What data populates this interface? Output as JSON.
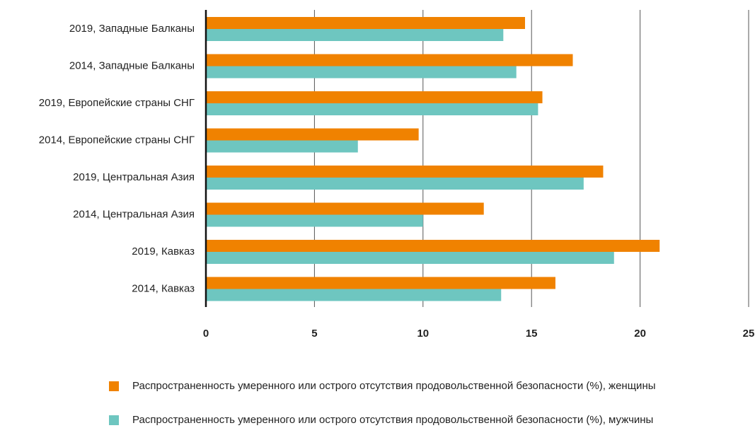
{
  "chart_data": {
    "type": "hbar",
    "categories": [
      "2019,  Западные Балканы",
      "2014, Западные Балканы",
      "2019, Европейские страны СНГ",
      "2014, Европейские страны СНГ",
      "2019, Центральная Азия",
      "2014, Центральная Азия",
      "2019, Кавказ",
      "2014, Кавказ"
    ],
    "series": [
      {
        "name": "Распространенность умеренного или острого отсутствия продовольственной безопасности (%), женщины",
        "color": "#f08200",
        "values": [
          14.7,
          16.9,
          15.5,
          9.8,
          18.3,
          12.8,
          20.9,
          16.1
        ]
      },
      {
        "name": "Распространенность умеренного или острого отсутствия продовольственной безопасности (%), мужчины",
        "color": "#6ec6c0",
        "values": [
          13.7,
          14.3,
          15.3,
          7.0,
          17.4,
          10.0,
          18.8,
          13.6
        ]
      }
    ],
    "xlim": [
      0,
      25
    ],
    "xticks": [
      0,
      5,
      10,
      15,
      20,
      25
    ],
    "grid": true
  }
}
